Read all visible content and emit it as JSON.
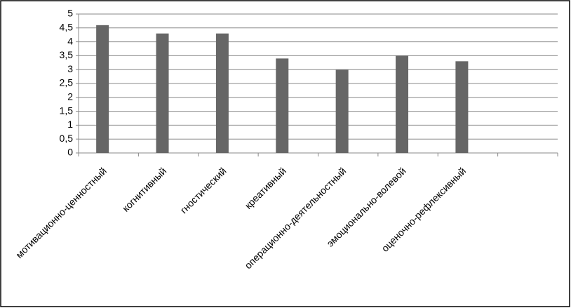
{
  "chart_data": {
    "type": "bar",
    "categories": [
      "мотивационно-ценностный",
      "когнитивный",
      "гностический",
      "креативный",
      "операционно-деятельностный",
      "эмоционально-волевой",
      "оценочно-рефлексивный",
      null
    ],
    "values": [
      4.6,
      4.3,
      4.3,
      3.4,
      3.0,
      3.5,
      3.3,
      null
    ],
    "color": "#666666",
    "ylim": [
      0,
      5
    ],
    "yticks": [
      0,
      {
        "value": 0.5,
        "label": "0,5"
      },
      1,
      {
        "value": 1.5,
        "label": "1,5"
      },
      2,
      {
        "value": 2.5,
        "label": "2,5"
      },
      3,
      {
        "value": 3.5,
        "label": "3,5"
      },
      4,
      {
        "value": 4.5,
        "label": "4,5"
      },
      5
    ],
    "grid": true
  }
}
